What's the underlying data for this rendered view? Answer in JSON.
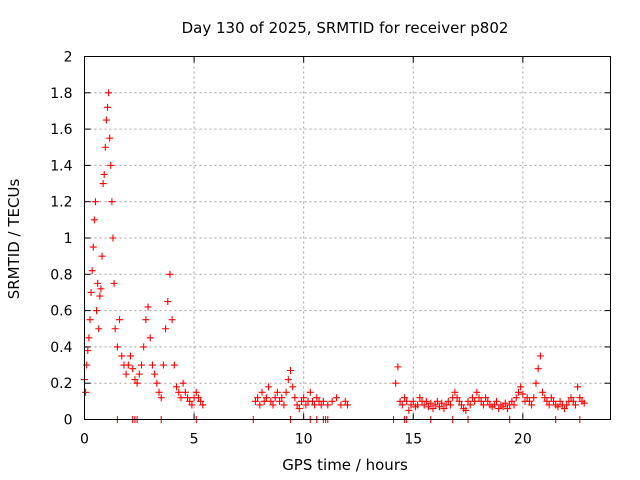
{
  "chart_data": {
    "type": "scatter",
    "title": "Day 130 of 2025, SRMTID for receiver p802",
    "xlabel": "GPS time / hours",
    "ylabel": "SRMTID / TECUs",
    "xlim": [
      0,
      24
    ],
    "ylim": [
      0,
      2
    ],
    "xticks": [
      0,
      5,
      10,
      15,
      20
    ],
    "xtick_labels": [
      "0",
      "5",
      "10",
      "15",
      "20"
    ],
    "yticks": [
      0,
      0.2,
      0.4,
      0.6,
      0.8,
      1,
      1.2,
      1.4,
      1.6,
      1.8,
      2
    ],
    "ytick_labels": [
      "0",
      "0.2",
      "0.4",
      "0.6",
      "0.8",
      "1",
      "1.2",
      "1.4",
      "1.6",
      "1.8",
      "2"
    ],
    "grid": true,
    "marker": "+",
    "color": "#ff0000",
    "series": [
      {
        "name": "SRMTID",
        "points": [
          [
            0.0,
            0.22
          ],
          [
            0.05,
            0.15
          ],
          [
            0.1,
            0.3
          ],
          [
            0.15,
            0.38
          ],
          [
            0.2,
            0.45
          ],
          [
            0.25,
            0.55
          ],
          [
            0.3,
            0.7
          ],
          [
            0.35,
            0.82
          ],
          [
            0.4,
            0.95
          ],
          [
            0.45,
            1.1
          ],
          [
            0.5,
            1.2
          ],
          [
            0.55,
            0.6
          ],
          [
            0.6,
            0.75
          ],
          [
            0.65,
            0.5
          ],
          [
            0.7,
            0.68
          ],
          [
            0.75,
            0.72
          ],
          [
            0.8,
            0.9
          ],
          [
            0.85,
            1.3
          ],
          [
            0.9,
            1.35
          ],
          [
            0.95,
            1.5
          ],
          [
            1.0,
            1.65
          ],
          [
            1.05,
            1.72
          ],
          [
            1.1,
            1.8
          ],
          [
            1.15,
            1.55
          ],
          [
            1.2,
            1.4
          ],
          [
            1.25,
            1.2
          ],
          [
            1.3,
            1.0
          ],
          [
            1.35,
            0.75
          ],
          [
            1.4,
            0.5
          ],
          [
            1.5,
            0.4
          ],
          [
            1.6,
            0.55
          ],
          [
            1.7,
            0.35
          ],
          [
            1.8,
            0.3
          ],
          [
            1.9,
            0.25
          ],
          [
            2.0,
            0.3
          ],
          [
            2.1,
            0.35
          ],
          [
            2.2,
            0.28
          ],
          [
            2.3,
            0.22
          ],
          [
            2.4,
            0.2
          ],
          [
            2.5,
            0.25
          ],
          [
            2.6,
            0.3
          ],
          [
            2.7,
            0.4
          ],
          [
            2.8,
            0.55
          ],
          [
            2.9,
            0.62
          ],
          [
            3.0,
            0.45
          ],
          [
            3.1,
            0.3
          ],
          [
            3.2,
            0.25
          ],
          [
            3.3,
            0.2
          ],
          [
            3.4,
            0.15
          ],
          [
            3.5,
            0.12
          ],
          [
            3.6,
            0.3
          ],
          [
            3.7,
            0.5
          ],
          [
            3.8,
            0.65
          ],
          [
            3.9,
            0.8
          ],
          [
            4.0,
            0.55
          ],
          [
            4.1,
            0.3
          ],
          [
            4.2,
            0.18
          ],
          [
            4.3,
            0.15
          ],
          [
            4.4,
            0.12
          ],
          [
            4.5,
            0.2
          ],
          [
            4.6,
            0.15
          ],
          [
            4.7,
            0.12
          ],
          [
            4.8,
            0.1
          ],
          [
            4.9,
            0.08
          ],
          [
            5.0,
            0.12
          ],
          [
            5.1,
            0.15
          ],
          [
            5.2,
            0.12
          ],
          [
            5.3,
            0.1
          ],
          [
            5.4,
            0.08
          ],
          [
            7.8,
            0.1
          ],
          [
            7.9,
            0.12
          ],
          [
            8.0,
            0.08
          ],
          [
            8.1,
            0.15
          ],
          [
            8.2,
            0.1
          ],
          [
            8.3,
            0.12
          ],
          [
            8.4,
            0.18
          ],
          [
            8.5,
            0.1
          ],
          [
            8.6,
            0.08
          ],
          [
            8.7,
            0.12
          ],
          [
            8.8,
            0.15
          ],
          [
            8.9,
            0.1
          ],
          [
            9.0,
            0.12
          ],
          [
            9.1,
            0.08
          ],
          [
            9.2,
            0.15
          ],
          [
            9.3,
            0.22
          ],
          [
            9.4,
            0.27
          ],
          [
            9.5,
            0.18
          ],
          [
            9.6,
            0.12
          ],
          [
            9.7,
            0.08
          ],
          [
            9.8,
            0.06
          ],
          [
            9.9,
            0.1
          ],
          [
            10.0,
            0.12
          ],
          [
            10.1,
            0.08
          ],
          [
            10.2,
            0.1
          ],
          [
            10.3,
            0.15
          ],
          [
            10.4,
            0.1
          ],
          [
            10.5,
            0.08
          ],
          [
            10.6,
            0.12
          ],
          [
            10.7,
            0.1
          ],
          [
            10.8,
            0.08
          ],
          [
            10.9,
            0.1
          ],
          [
            11.1,
            0.08
          ],
          [
            11.3,
            0.1
          ],
          [
            11.5,
            0.12
          ],
          [
            11.7,
            0.08
          ],
          [
            11.9,
            0.1
          ],
          [
            12.0,
            0.08
          ],
          [
            14.2,
            0.2
          ],
          [
            14.3,
            0.29
          ],
          [
            14.4,
            0.1
          ],
          [
            14.5,
            0.08
          ],
          [
            14.6,
            0.12
          ],
          [
            14.7,
            0.1
          ],
          [
            14.8,
            0.05
          ],
          [
            14.9,
            0.08
          ],
          [
            15.0,
            0.1
          ],
          [
            15.1,
            0.07
          ],
          [
            15.2,
            0.08
          ],
          [
            15.3,
            0.12
          ],
          [
            15.4,
            0.1
          ],
          [
            15.5,
            0.08
          ],
          [
            15.6,
            0.1
          ],
          [
            15.7,
            0.07
          ],
          [
            15.8,
            0.09
          ],
          [
            15.9,
            0.06
          ],
          [
            16.0,
            0.08
          ],
          [
            16.1,
            0.1
          ],
          [
            16.2,
            0.07
          ],
          [
            16.3,
            0.09
          ],
          [
            16.4,
            0.06
          ],
          [
            16.5,
            0.08
          ],
          [
            16.6,
            0.1
          ],
          [
            16.7,
            0.08
          ],
          [
            16.8,
            0.12
          ],
          [
            16.9,
            0.15
          ],
          [
            17.0,
            0.12
          ],
          [
            17.1,
            0.1
          ],
          [
            17.2,
            0.08
          ],
          [
            17.3,
            0.06
          ],
          [
            17.4,
            0.05
          ],
          [
            17.5,
            0.1
          ],
          [
            17.6,
            0.08
          ],
          [
            17.7,
            0.12
          ],
          [
            17.8,
            0.1
          ],
          [
            17.9,
            0.15
          ],
          [
            18.0,
            0.12
          ],
          [
            18.1,
            0.1
          ],
          [
            18.2,
            0.08
          ],
          [
            18.3,
            0.12
          ],
          [
            18.4,
            0.1
          ],
          [
            18.5,
            0.08
          ],
          [
            18.6,
            0.07
          ],
          [
            18.7,
            0.08
          ],
          [
            18.8,
            0.1
          ],
          [
            18.9,
            0.06
          ],
          [
            19.0,
            0.08
          ],
          [
            19.1,
            0.07
          ],
          [
            19.2,
            0.09
          ],
          [
            19.3,
            0.06
          ],
          [
            19.4,
            0.08
          ],
          [
            19.5,
            0.1
          ],
          [
            19.6,
            0.08
          ],
          [
            19.7,
            0.12
          ],
          [
            19.8,
            0.15
          ],
          [
            19.9,
            0.18
          ],
          [
            20.0,
            0.14
          ],
          [
            20.1,
            0.1
          ],
          [
            20.2,
            0.12
          ],
          [
            20.3,
            0.1
          ],
          [
            20.4,
            0.08
          ],
          [
            20.5,
            0.12
          ],
          [
            20.6,
            0.2
          ],
          [
            20.7,
            0.28
          ],
          [
            20.8,
            0.35
          ],
          [
            20.9,
            0.15
          ],
          [
            21.0,
            0.12
          ],
          [
            21.1,
            0.1
          ],
          [
            21.2,
            0.08
          ],
          [
            21.3,
            0.12
          ],
          [
            21.4,
            0.1
          ],
          [
            21.5,
            0.08
          ],
          [
            21.6,
            0.07
          ],
          [
            21.7,
            0.1
          ],
          [
            21.8,
            0.08
          ],
          [
            21.9,
            0.06
          ],
          [
            22.0,
            0.08
          ],
          [
            22.1,
            0.1
          ],
          [
            22.2,
            0.12
          ],
          [
            22.3,
            0.1
          ],
          [
            22.4,
            0.08
          ],
          [
            22.5,
            0.18
          ],
          [
            22.6,
            0.12
          ],
          [
            22.7,
            0.1
          ],
          [
            22.8,
            0.09
          ]
        ],
        "zero_points": [
          1.5,
          2.2,
          2.3,
          2.4,
          3.5,
          5.1,
          7.7,
          9.4,
          10.3,
          10.6,
          10.9,
          11.0,
          11.1,
          14.1,
          14.6,
          14.7,
          15.8,
          16.8,
          17.5,
          19.4,
          21.5,
          22.6
        ]
      }
    ]
  }
}
